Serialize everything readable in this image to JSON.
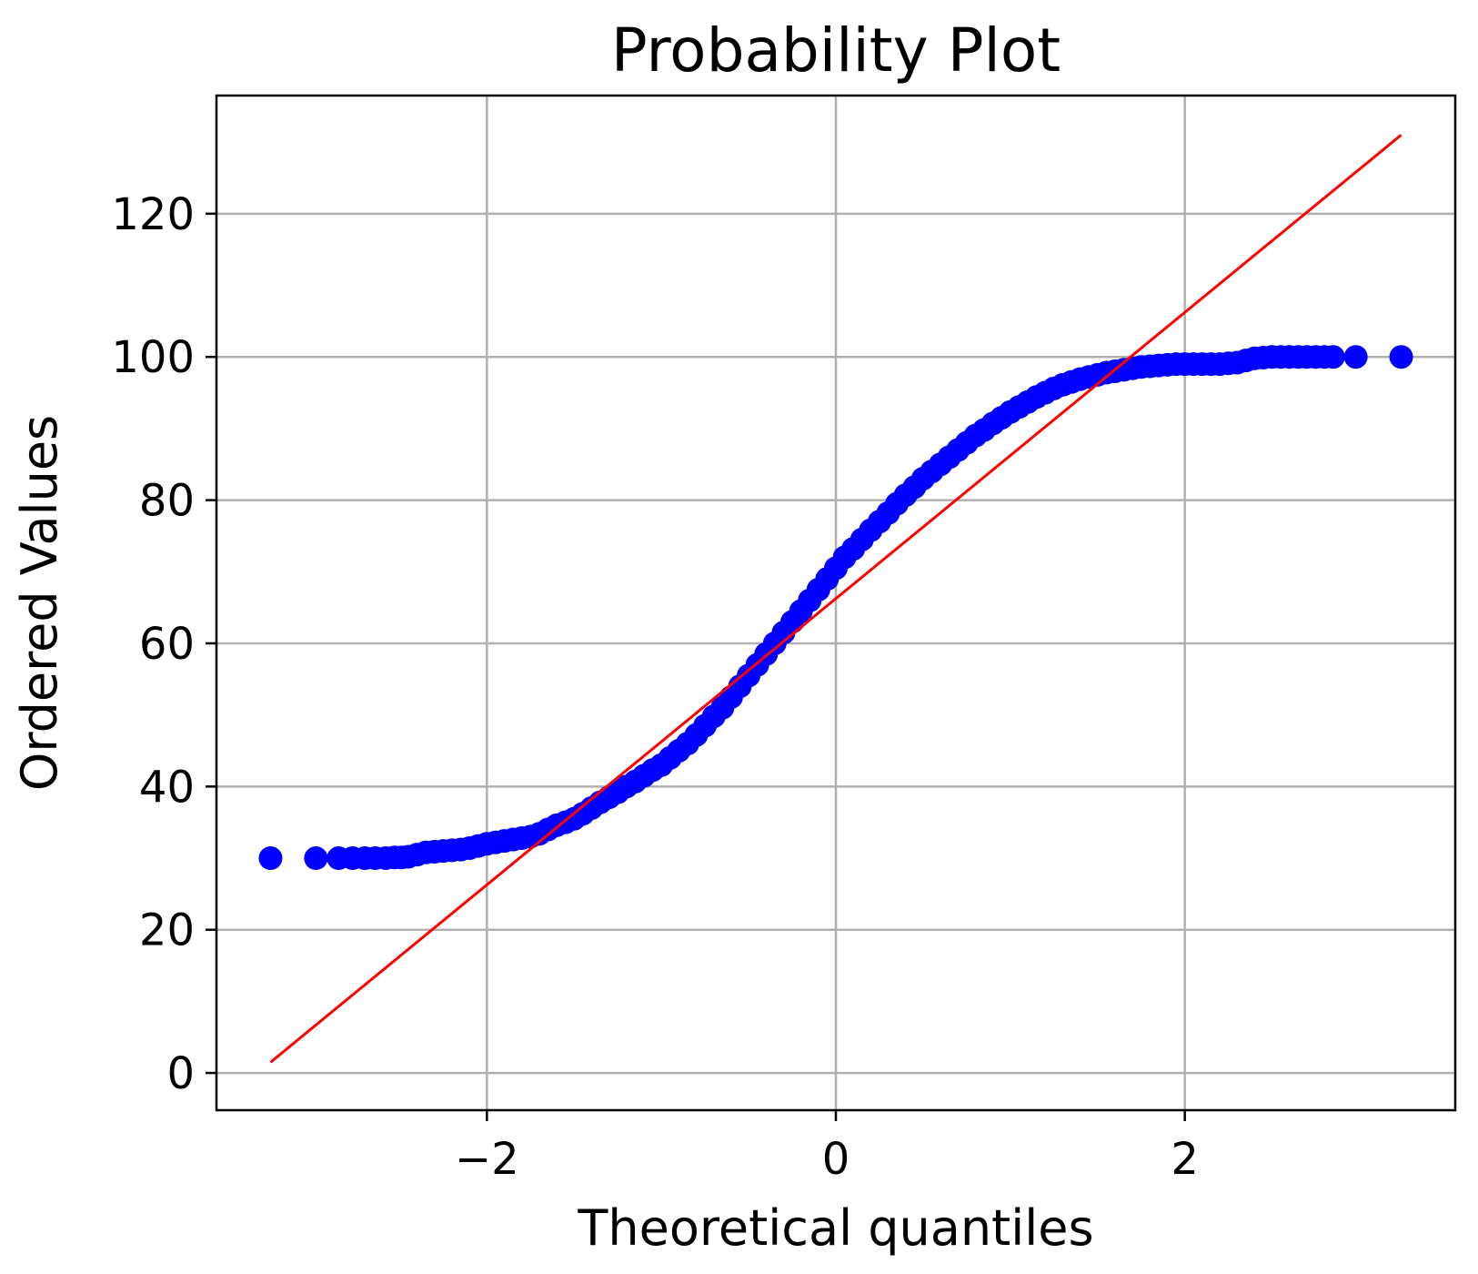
{
  "chart_data": {
    "type": "scatter",
    "title": "Probability Plot",
    "xlabel": "Theoretical quantiles",
    "ylabel": "Ordered Values",
    "xlim": [
      -3.55,
      3.55
    ],
    "ylim": [
      -5.2,
      136.5
    ],
    "xticks": [
      -2,
      0,
      2
    ],
    "xtick_labels": [
      "−2",
      "0",
      "2"
    ],
    "yticks": [
      0,
      20,
      40,
      60,
      80,
      100,
      120
    ],
    "ytick_labels": [
      "0",
      "20",
      "40",
      "60",
      "80",
      "100",
      "120"
    ],
    "grid": true,
    "colors": {
      "points": "#0000ff",
      "fit_line": "#ff0000",
      "grid": "#b0b0b0",
      "frame": "#000000"
    },
    "series": [
      {
        "marker": "circle",
        "x": [
          -3.24,
          -2.98,
          -2.85,
          -2.77,
          -2.7,
          -2.64,
          -2.58,
          -2.53,
          -2.49,
          -2.45,
          -2.4,
          -2.35,
          -2.3,
          -2.25,
          -2.2,
          -2.15,
          -2.1,
          -2.05,
          -2.0,
          -1.95,
          -1.9,
          -1.85,
          -1.8,
          -1.75,
          -1.7,
          -1.65,
          -1.6,
          -1.55,
          -1.5,
          -1.45,
          -1.4,
          -1.35,
          -1.3,
          -1.25,
          -1.2,
          -1.15,
          -1.1,
          -1.05,
          -1.0,
          -0.95,
          -0.9,
          -0.85,
          -0.8,
          -0.75,
          -0.7,
          -0.65,
          -0.6,
          -0.55,
          -0.5,
          -0.45,
          -0.4,
          -0.35,
          -0.3,
          -0.25,
          -0.2,
          -0.15,
          -0.1,
          -0.05,
          0.0,
          0.05,
          0.1,
          0.15,
          0.2,
          0.25,
          0.3,
          0.35,
          0.4,
          0.45,
          0.5,
          0.55,
          0.6,
          0.65,
          0.7,
          0.75,
          0.8,
          0.85,
          0.9,
          0.95,
          1.0,
          1.05,
          1.1,
          1.15,
          1.2,
          1.25,
          1.3,
          1.35,
          1.4,
          1.45,
          1.5,
          1.55,
          1.6,
          1.65,
          1.7,
          1.75,
          1.8,
          1.85,
          1.9,
          1.95,
          2.0,
          2.05,
          2.1,
          2.15,
          2.2,
          2.25,
          2.3,
          2.35,
          2.4,
          2.45,
          2.5,
          2.55,
          2.6,
          2.65,
          2.7,
          2.75,
          2.8,
          2.85,
          2.98,
          3.24
        ],
        "y": [
          30.0,
          30.0,
          30.0,
          30.0,
          30.0,
          30.0,
          30.0,
          30.1,
          30.1,
          30.2,
          30.5,
          30.8,
          30.9,
          31.0,
          31.1,
          31.2,
          31.4,
          31.7,
          32.0,
          32.2,
          32.4,
          32.6,
          32.8,
          33.0,
          33.4,
          34.0,
          34.6,
          35.0,
          35.5,
          36.2,
          37.0,
          37.8,
          38.5,
          39.2,
          40.0,
          40.7,
          41.5,
          42.3,
          43.0,
          44.0,
          45.0,
          46.0,
          47.2,
          48.5,
          49.8,
          51.0,
          52.5,
          54.0,
          55.5,
          57.0,
          58.5,
          60.0,
          61.5,
          63.0,
          64.5,
          66.0,
          67.5,
          69.0,
          70.5,
          72.0,
          73.2,
          74.5,
          75.8,
          77.0,
          78.2,
          79.5,
          80.7,
          81.8,
          83.0,
          84.0,
          85.0,
          86.0,
          87.0,
          88.0,
          89.0,
          89.8,
          90.7,
          91.5,
          92.3,
          93.0,
          93.7,
          94.4,
          95.0,
          95.6,
          96.1,
          96.5,
          96.9,
          97.2,
          97.5,
          97.8,
          98.0,
          98.2,
          98.4,
          98.6,
          98.7,
          98.8,
          98.9,
          99.0,
          99.0,
          99.0,
          99.0,
          99.0,
          99.0,
          99.1,
          99.2,
          99.5,
          99.8,
          99.9,
          100.0,
          100.0,
          100.0,
          100.0,
          100.0,
          100.0,
          100.0,
          100.0,
          100.0,
          100.0
        ]
      }
    ],
    "fit_line": {
      "x": [
        -3.24,
        3.24
      ],
      "y": [
        1.5,
        131.0
      ]
    }
  }
}
